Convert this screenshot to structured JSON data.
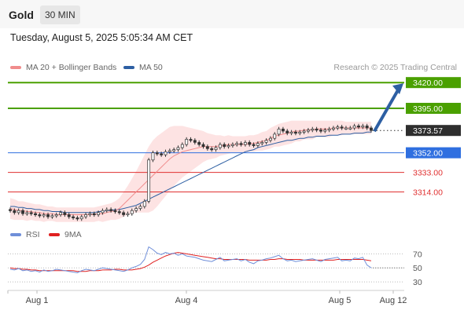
{
  "header": {
    "title": "Gold",
    "timeframe": "30 MIN"
  },
  "timestamp": "Tuesday, August 5, 2025 5:05:34 AM CET",
  "legend": {
    "ma20": {
      "label": "MA 20 + Bollinger Bands",
      "color": "#f08c8c"
    },
    "ma50": {
      "label": "MA 50",
      "color": "#2d5fa3"
    }
  },
  "credit": "Research © 2025 Trading Central",
  "rsi_legend": {
    "rsi": {
      "label": "RSI",
      "color": "#6f8fd9"
    },
    "ma9": {
      "label": "9MA",
      "color": "#e02020"
    }
  },
  "colors": {
    "target": "#4aa000",
    "current": "#2e2e2e",
    "pivot": "#2f6fe0",
    "support": "#e03030",
    "ma20": "#f08c8c",
    "ma50": "#2d5fa3",
    "band": "#fde0e0",
    "arrow": "#2d5fa3",
    "bull": "#2f9e3c",
    "bear": "#c03030"
  },
  "chart_data": [
    {
      "type": "line",
      "title": "Gold 30 MIN",
      "y_range": [
        3284,
        3430
      ],
      "x_ticks": [
        "Aug 1",
        "Aug 4",
        "Aug 5",
        "Aug 12"
      ],
      "current_price": 3373.57,
      "levels": [
        {
          "label": "3420.00",
          "value": 3420.0,
          "kind": "target"
        },
        {
          "label": "3395.00",
          "value": 3395.0,
          "kind": "target"
        },
        {
          "label": "3373.57",
          "value": 3373.57,
          "kind": "current"
        },
        {
          "label": "3352.00",
          "value": 3352.0,
          "kind": "pivot"
        },
        {
          "label": "3333.00",
          "value": 3333.0,
          "kind": "support"
        },
        {
          "label": "3314.00",
          "value": 3314.0,
          "kind": "support"
        }
      ],
      "series": [
        {
          "name": "Close",
          "values": [
            3296,
            3294,
            3296,
            3293,
            3294,
            3293,
            3292,
            3291,
            3292,
            3290,
            3291,
            3292,
            3294,
            3292,
            3290,
            3289,
            3288,
            3290,
            3292,
            3293,
            3292,
            3294,
            3296,
            3297,
            3296,
            3295,
            3294,
            3292,
            3293,
            3296,
            3298,
            3300,
            3305,
            3345,
            3352,
            3351,
            3350,
            3353,
            3354,
            3355,
            3357,
            3360,
            3365,
            3364,
            3362,
            3360,
            3358,
            3356,
            3355,
            3357,
            3360,
            3358,
            3359,
            3360,
            3361,
            3360,
            3362,
            3360,
            3359,
            3361,
            3362,
            3364,
            3366,
            3370,
            3375,
            3373,
            3371,
            3372,
            3371,
            3372,
            3373,
            3374,
            3375,
            3374,
            3373,
            3374,
            3375,
            3376,
            3377,
            3376,
            3376,
            3376,
            3378,
            3377,
            3378,
            3376,
            3373.57
          ]
        },
        {
          "name": "MA 20",
          "values": [
            3298,
            3297,
            3296,
            3296,
            3295,
            3295,
            3294,
            3294,
            3293,
            3293,
            3293,
            3292,
            3292,
            3292,
            3292,
            3292,
            3292,
            3292,
            3292,
            3292,
            3292,
            3293,
            3293,
            3294,
            3295,
            3296,
            3298,
            3302,
            3306,
            3310,
            3314,
            3318,
            3322,
            3326,
            3330,
            3334,
            3338,
            3342,
            3346,
            3349,
            3351,
            3353,
            3354,
            3355,
            3356,
            3357,
            3358,
            3358,
            3358,
            3358,
            3359,
            3359,
            3360,
            3360,
            3360,
            3360,
            3360,
            3361,
            3361,
            3362,
            3363,
            3364,
            3366,
            3368,
            3369,
            3370,
            3371,
            3372,
            3373,
            3373,
            3374,
            3374,
            3374,
            3375,
            3375,
            3375,
            3375,
            3376,
            3376,
            3376,
            3376,
            3376,
            3376,
            3376,
            3376,
            3376,
            3376
          ]
        },
        {
          "name": "MA 50",
          "values": [
            3300,
            3300,
            3299,
            3299,
            3298,
            3298,
            3297,
            3297,
            3296,
            3296,
            3295,
            3295,
            3295,
            3294,
            3294,
            3294,
            3294,
            3294,
            3294,
            3294,
            3294,
            3295,
            3295,
            3296,
            3296,
            3297,
            3297,
            3298,
            3299,
            3300,
            3301,
            3303,
            3305,
            3307,
            3309,
            3311,
            3313,
            3315,
            3317,
            3319,
            3321,
            3323,
            3325,
            3327,
            3329,
            3331,
            3333,
            3335,
            3337,
            3339,
            3341,
            3343,
            3345,
            3347,
            3349,
            3351,
            3353,
            3354,
            3355,
            3357,
            3358,
            3359,
            3360,
            3361,
            3362,
            3363,
            3364,
            3364,
            3365,
            3366,
            3366,
            3367,
            3367,
            3368,
            3368,
            3368,
            3369,
            3369,
            3369,
            3370,
            3370,
            3370,
            3371,
            3371,
            3371,
            3372,
            3372
          ]
        },
        {
          "name": "RSI",
          "values": [
            48,
            47,
            49,
            46,
            47,
            45,
            46,
            44,
            47,
            45,
            46,
            48,
            47,
            46,
            45,
            44,
            43,
            46,
            48,
            47,
            46,
            48,
            50,
            49,
            48,
            47,
            46,
            45,
            47,
            50,
            52,
            55,
            62,
            80,
            76,
            71,
            69,
            72,
            70,
            71,
            68,
            70,
            67,
            66,
            65,
            63,
            61,
            60,
            59,
            62,
            65,
            60,
            61,
            62,
            63,
            60,
            62,
            58,
            56,
            60,
            61,
            63,
            64,
            66,
            68,
            63,
            60,
            61,
            59,
            60,
            61,
            62,
            63,
            61,
            59,
            62,
            63,
            64,
            65,
            60,
            61,
            60,
            64,
            63,
            65,
            54,
            50
          ]
        },
        {
          "name": "9MA",
          "values": [
            50,
            49,
            49,
            48,
            48,
            47,
            47,
            46,
            46,
            46,
            46,
            46,
            46,
            46,
            46,
            46,
            45,
            45,
            45,
            46,
            46,
            46,
            47,
            47,
            47,
            48,
            48,
            47,
            47,
            47,
            48,
            49,
            51,
            54,
            58,
            61,
            64,
            67,
            69,
            71,
            72,
            71,
            70,
            69,
            68,
            67,
            66,
            65,
            64,
            63,
            63,
            62,
            62,
            62,
            62,
            62,
            62,
            61,
            61,
            61,
            61,
            61,
            62,
            62,
            63,
            63,
            62,
            62,
            62,
            62,
            61,
            61,
            61,
            61,
            61,
            61,
            61,
            61,
            62,
            62,
            62,
            62,
            62,
            62,
            62,
            61,
            60
          ]
        }
      ],
      "bollinger_halfwidth": [
        10,
        10,
        9,
        9,
        9,
        8,
        8,
        8,
        8,
        7,
        7,
        7,
        7,
        7,
        7,
        7,
        7,
        7,
        7,
        7,
        7,
        7,
        8,
        8,
        8,
        9,
        10,
        12,
        14,
        17,
        20,
        24,
        28,
        32,
        34,
        34,
        33,
        32,
        31,
        29,
        27,
        25,
        23,
        21,
        19,
        17,
        15,
        13,
        12,
        11,
        10,
        9,
        9,
        8,
        8,
        8,
        8,
        8,
        8,
        8,
        9,
        9,
        10,
        10,
        11,
        11,
        11,
        11,
        10,
        10,
        9,
        9,
        9,
        8,
        8,
        8,
        8,
        7,
        7,
        7,
        6,
        6,
        6,
        6,
        6,
        6,
        6
      ]
    },
    {
      "type": "line",
      "title": "RSI",
      "y_range": [
        20,
        85
      ],
      "y_ticks": [
        "70",
        "50",
        "30"
      ]
    }
  ]
}
